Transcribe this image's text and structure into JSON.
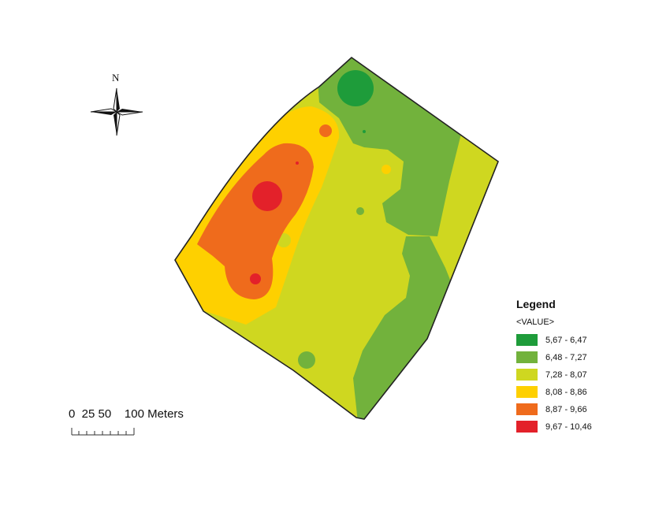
{
  "north_arrow": {
    "label": "N",
    "icon": "compass-rose-icon"
  },
  "scale_bar": {
    "tick_labels": [
      "0",
      "25",
      "50",
      "100"
    ],
    "unit": "Meters",
    "text": "0  25 50    100 Meters"
  },
  "legend": {
    "title": "Legend",
    "field": "<VALUE>",
    "classes": [
      {
        "label": "5,67 - 6,47",
        "color": "#1e9c3a"
      },
      {
        "label": "6,48 - 7,27",
        "color": "#72b23c"
      },
      {
        "label": "7,28 - 8,07",
        "color": "#cfd720"
      },
      {
        "label": "8,08 - 8,86",
        "color": "#fed000"
      },
      {
        "label": "8,87 - 9,66",
        "color": "#ef6b1c"
      },
      {
        "label": "9,67 - 10,46",
        "color": "#e3212a"
      }
    ]
  }
}
